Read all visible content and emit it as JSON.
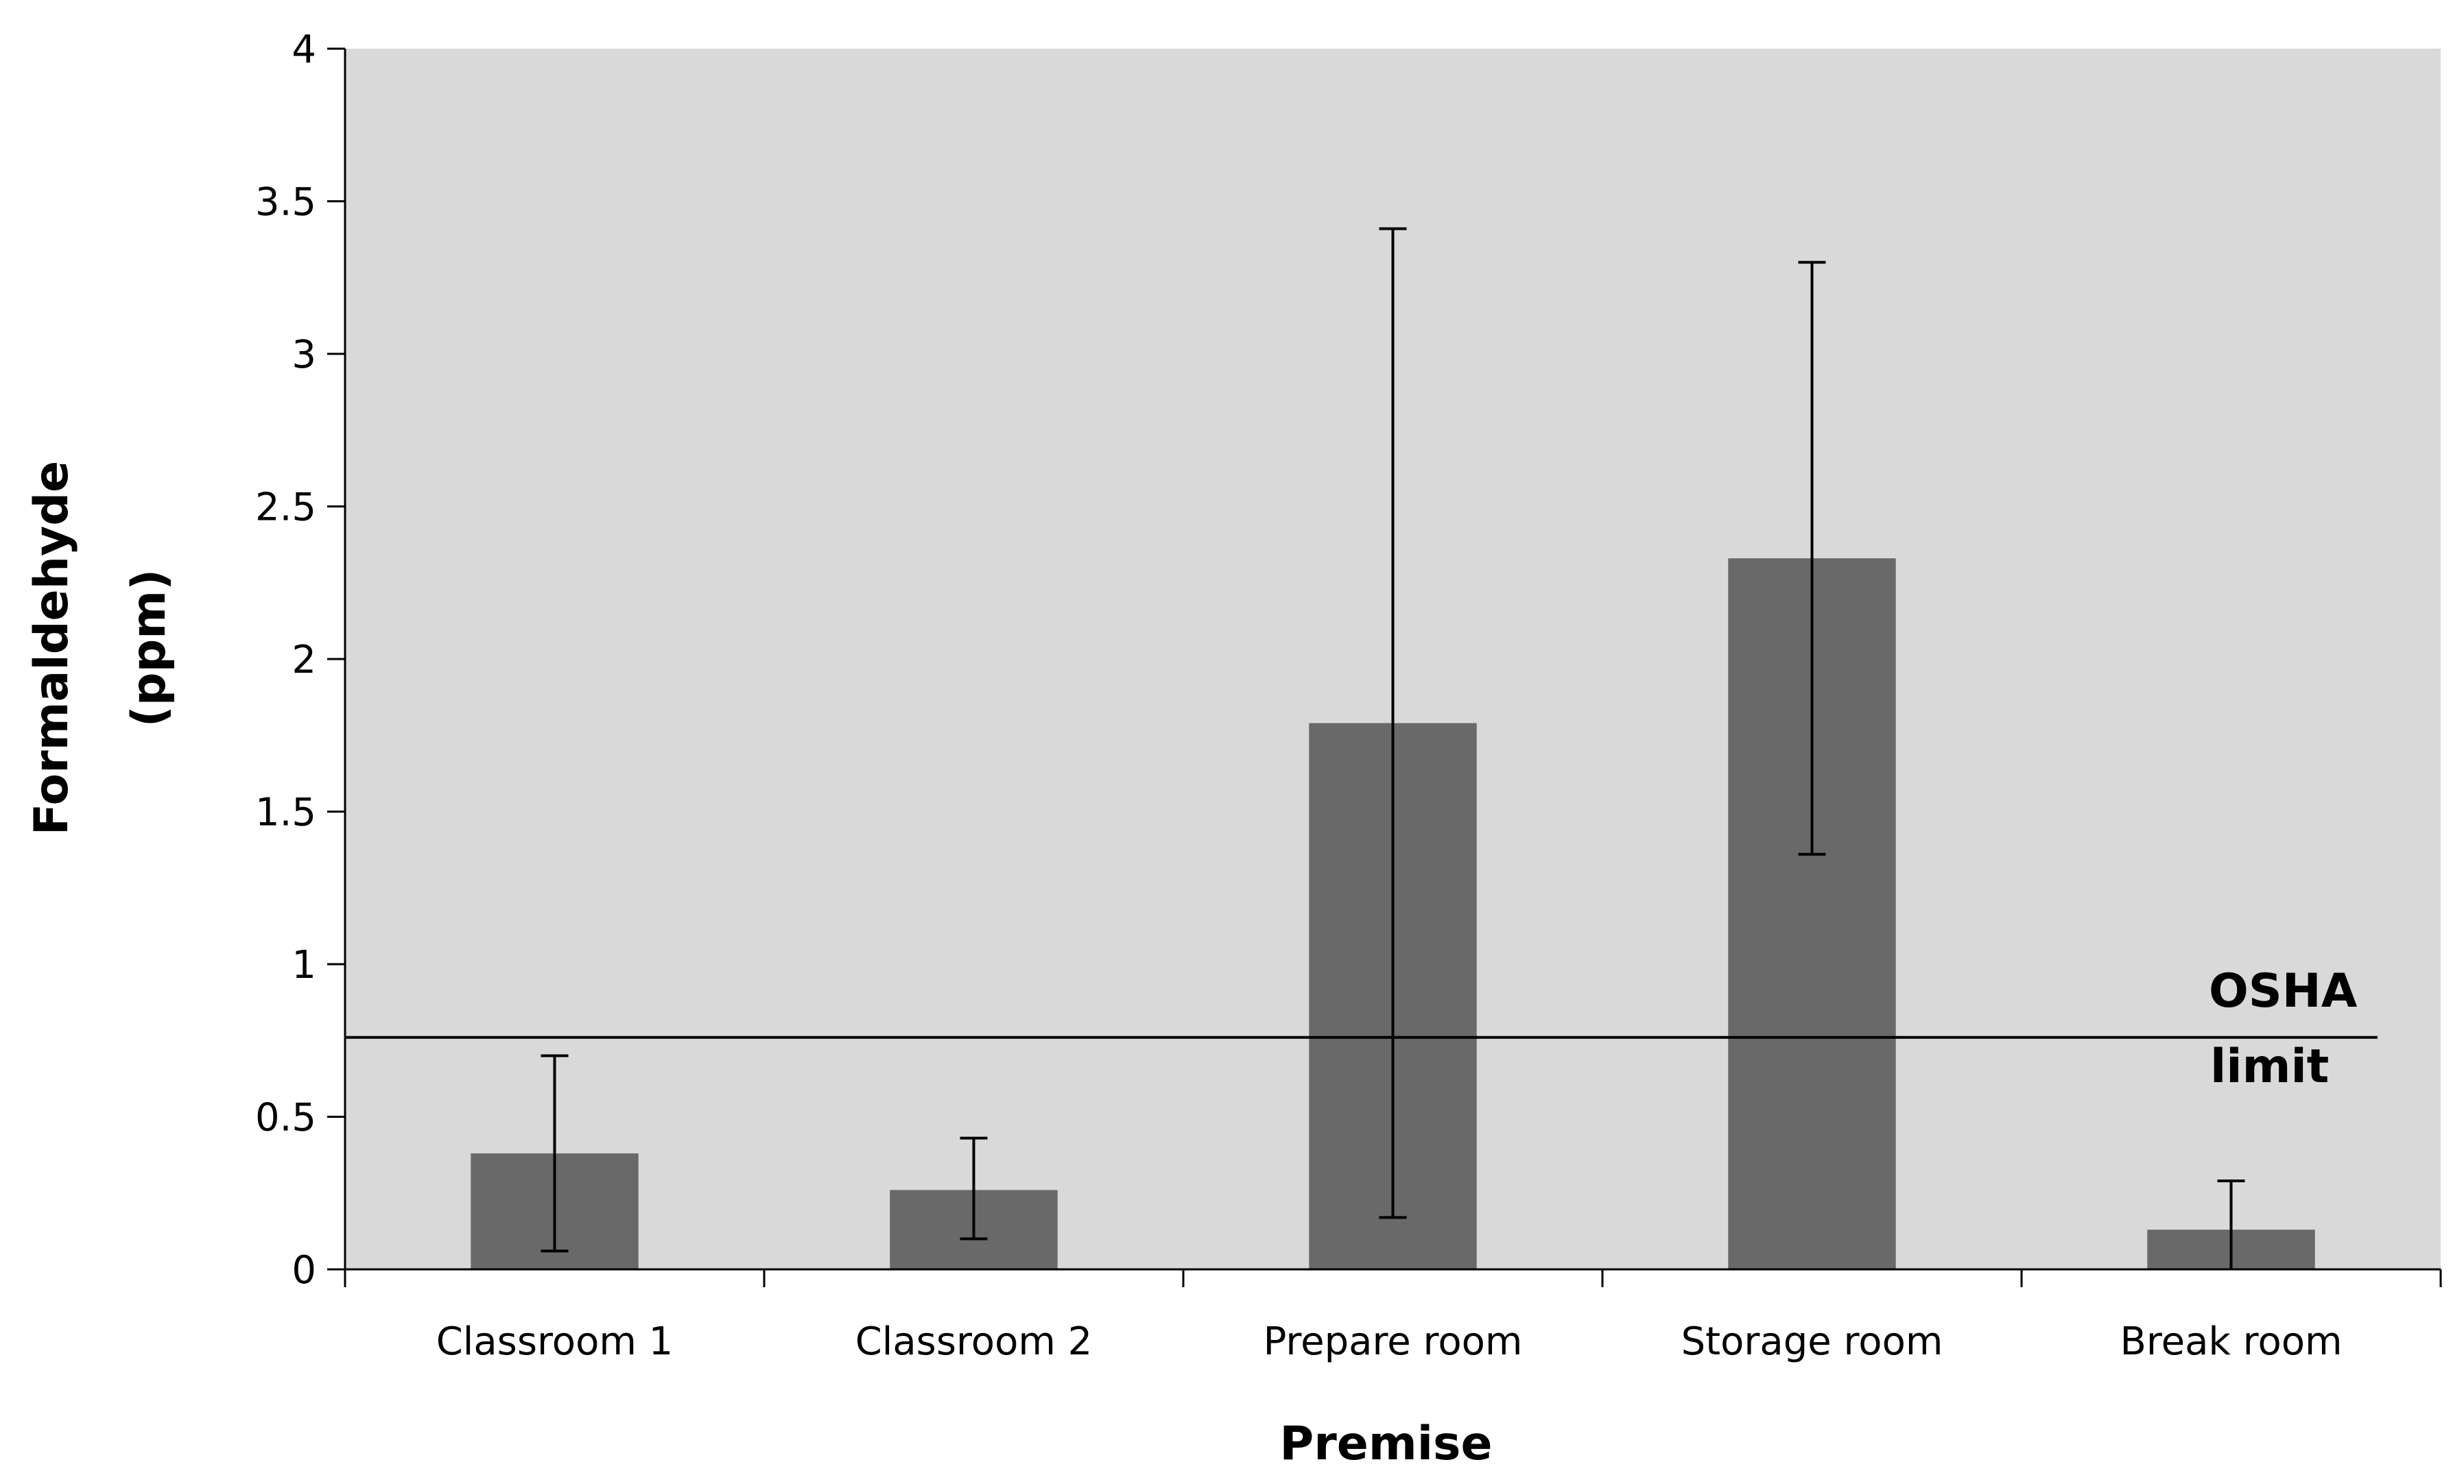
{
  "chart_data": {
    "type": "bar",
    "title": "",
    "xlabel": "Premise",
    "ylabel_lines": [
      "Formaldehyde",
      "(ppm)"
    ],
    "categories": [
      "Classroom 1",
      "Classroom 2",
      "Prepare room",
      "Storage room",
      "Break room"
    ],
    "values": [
      0.38,
      0.26,
      1.79,
      2.33,
      0.13
    ],
    "error_low": [
      0.06,
      0.1,
      0.17,
      1.36,
      0
    ],
    "error_high": [
      0.7,
      0.43,
      3.41,
      3.3,
      0.29
    ],
    "ylim": [
      0,
      4
    ],
    "yticks": [
      "0",
      "0.5",
      "1",
      "1.5",
      "2",
      "2.5",
      "3",
      "3.5",
      "4"
    ],
    "reference_line": {
      "value": 0.76,
      "label_lines": [
        "OSHA",
        "limit"
      ]
    },
    "grid": false,
    "legend": "none",
    "colors": {
      "plot_background": "#d9d9d9",
      "bar": "#696969",
      "line": "#000000"
    }
  }
}
